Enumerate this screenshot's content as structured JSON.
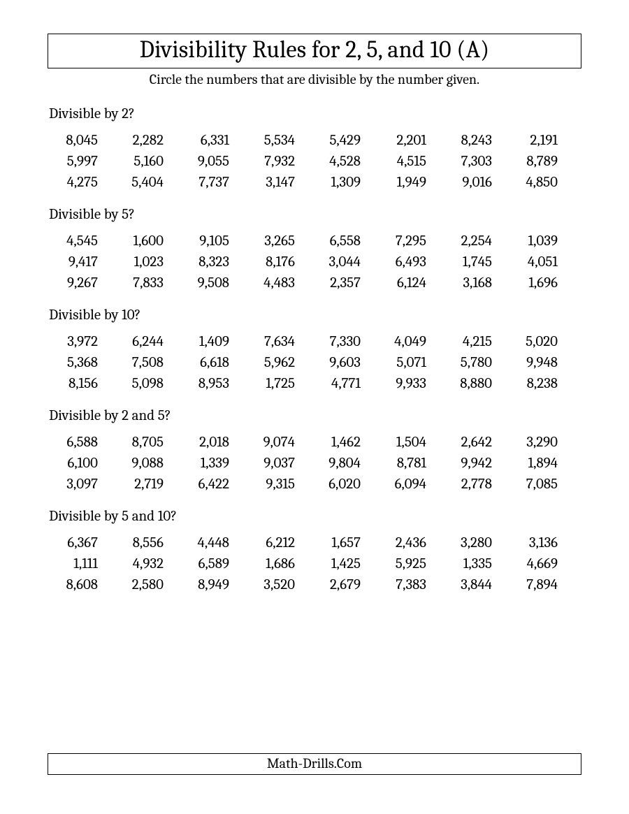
{
  "title": "Divisibility Rules for 2, 5, and 10 (A)",
  "instructions": "Circle the numbers that are divisible by the number given.",
  "footer": "Math-Drills.Com",
  "sections": [
    {
      "label": "Divisible by 2?",
      "numbers": [
        "8,045",
        "2,282",
        "6,331",
        "5,534",
        "5,429",
        "2,201",
        "8,243",
        "2,191",
        "5,997",
        "5,160",
        "9,055",
        "7,932",
        "4,528",
        "4,515",
        "7,303",
        "8,789",
        "4,275",
        "5,404",
        "7,737",
        "3,147",
        "1,309",
        "1,949",
        "9,016",
        "4,850"
      ]
    },
    {
      "label": "Divisible by 5?",
      "numbers": [
        "4,545",
        "1,600",
        "9,105",
        "3,265",
        "6,558",
        "7,295",
        "2,254",
        "1,039",
        "9,417",
        "1,023",
        "8,323",
        "8,176",
        "3,044",
        "6,493",
        "1,745",
        "4,051",
        "9,267",
        "7,833",
        "9,508",
        "4,483",
        "2,357",
        "6,124",
        "3,168",
        "1,696"
      ]
    },
    {
      "label": "Divisible by 10?",
      "numbers": [
        "3,972",
        "6,244",
        "1,409",
        "7,634",
        "7,330",
        "4,049",
        "4,215",
        "5,020",
        "5,368",
        "7,508",
        "6,618",
        "5,962",
        "9,603",
        "5,071",
        "5,780",
        "9,948",
        "8,156",
        "5,098",
        "8,953",
        "1,725",
        "4,771",
        "9,933",
        "8,880",
        "8,238"
      ]
    },
    {
      "label": "Divisible by 2 and 5?",
      "numbers": [
        "6,588",
        "8,705",
        "2,018",
        "9,074",
        "1,462",
        "1,504",
        "2,642",
        "3,290",
        "6,100",
        "9,088",
        "1,339",
        "9,037",
        "9,804",
        "8,781",
        "9,942",
        "1,894",
        "3,097",
        "2,719",
        "6,422",
        "9,315",
        "6,020",
        "6,094",
        "2,778",
        "7,085"
      ]
    },
    {
      "label": "Divisible by 5 and 10?",
      "numbers": [
        "6,367",
        "8,556",
        "4,448",
        "6,212",
        "1,657",
        "2,436",
        "3,280",
        "3,136",
        "1,111",
        "4,932",
        "6,589",
        "1,686",
        "1,425",
        "5,925",
        "1,335",
        "4,669",
        "8,608",
        "2,580",
        "8,949",
        "3,520",
        "2,679",
        "7,383",
        "3,844",
        "7,894"
      ]
    }
  ]
}
